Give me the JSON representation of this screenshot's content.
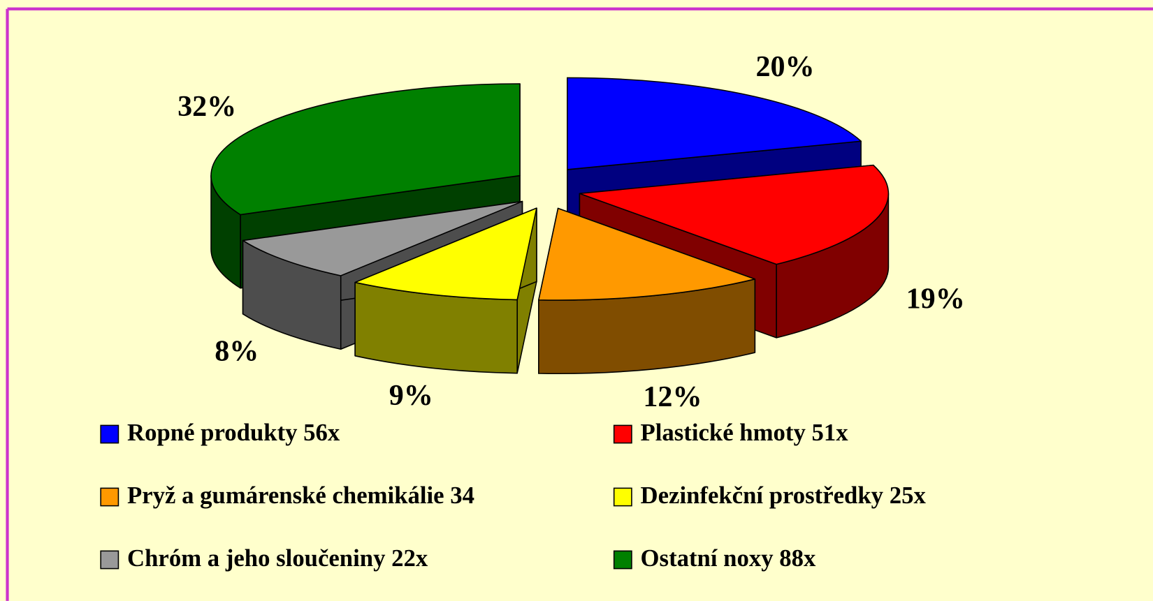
{
  "chart_data": {
    "type": "pie",
    "categories": [
      "Ropné produkty 56x",
      "Plastické hmoty 51x",
      "Pryž a gumárenské chemikálie 34",
      "Dezinfekční prostředky 25x",
      "Chróm a jeho sloučeniny 22x",
      "Ostatní noxy 88x"
    ],
    "values": [
      20,
      19,
      12,
      9,
      8,
      32
    ],
    "value_labels": [
      "20%",
      "19%",
      "12%",
      "9%",
      "8%",
      "32%"
    ],
    "colors": [
      "#0000ff",
      "#ff0000",
      "#ff9900",
      "#ffff00",
      "#999999",
      "#008000"
    ],
    "legend": "bottom"
  }
}
